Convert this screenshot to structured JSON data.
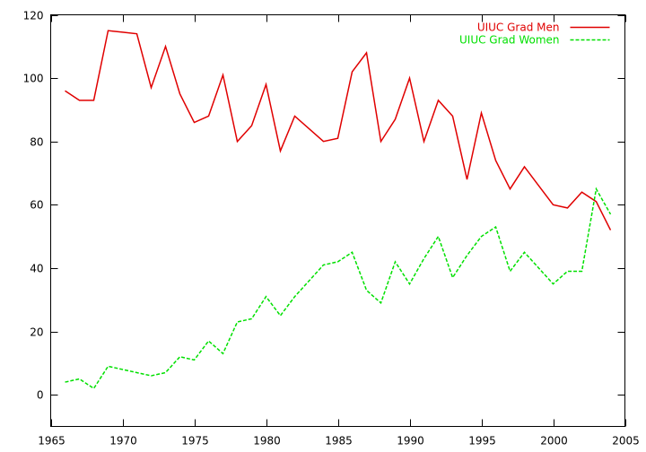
{
  "chart_data": {
    "type": "line",
    "title": "",
    "xlabel": "",
    "ylabel": "",
    "xlim": [
      1965,
      2005
    ],
    "ylim": [
      -10,
      120
    ],
    "x_ticks": [
      1965,
      1970,
      1975,
      1980,
      1985,
      1990,
      1995,
      2000,
      2005
    ],
    "y_ticks": [
      0,
      20,
      40,
      60,
      80,
      100,
      120
    ],
    "x_tick_labels": [
      "1965",
      "1970",
      "1975",
      "1980",
      "1985",
      "1990",
      "1995",
      "2000",
      "2005"
    ],
    "y_tick_labels": [
      "0",
      "20",
      "40",
      "60",
      "80",
      "100",
      "120"
    ],
    "grid": false,
    "legend_position": "top-right",
    "x": [
      1966,
      1967,
      1968,
      1969,
      1970,
      1971,
      1972,
      1973,
      1974,
      1975,
      1976,
      1977,
      1978,
      1979,
      1980,
      1981,
      1982,
      1983,
      1984,
      1985,
      1986,
      1987,
      1988,
      1989,
      1990,
      1991,
      1992,
      1993,
      1994,
      1995,
      1996,
      1997,
      1998,
      1999,
      2000,
      2001,
      2002,
      2003,
      2004
    ],
    "series": [
      {
        "name": "UIUC Grad Men",
        "color": "#e00000",
        "dash": "solid",
        "values": [
          96,
          93,
          93,
          115,
          114.5,
          114,
          97,
          110,
          95,
          86,
          88,
          101,
          80,
          85,
          98,
          77,
          88,
          84,
          80,
          81,
          102,
          108,
          80,
          87,
          100,
          80,
          93,
          88,
          68,
          89,
          74,
          65,
          72,
          66,
          60,
          59,
          64,
          61,
          52
        ]
      },
      {
        "name": "UIUC Grad Women",
        "color": "#00e000",
        "dash": "dashed",
        "values": [
          4,
          5,
          2,
          9,
          8,
          7,
          6,
          7,
          12,
          11,
          17,
          13,
          23,
          24,
          31,
          25,
          31,
          36,
          41,
          42,
          45,
          33,
          29,
          42,
          35,
          43,
          50,
          37,
          44,
          50,
          53,
          39,
          45,
          40,
          35,
          39,
          39,
          65,
          57
        ]
      }
    ]
  }
}
